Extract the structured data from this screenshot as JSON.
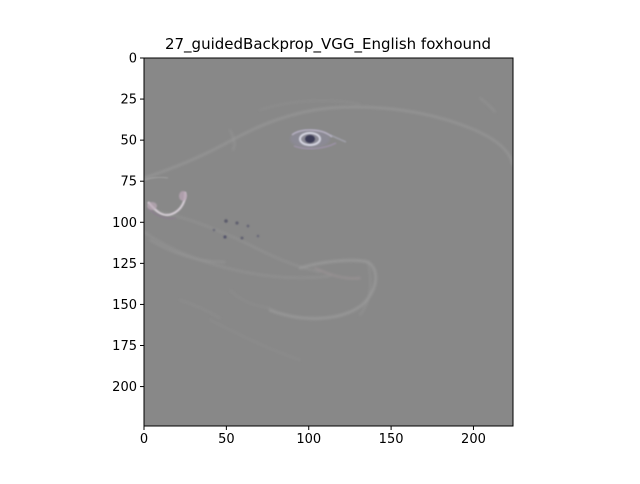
{
  "chart_data": {
    "type": "heatmap",
    "title": "27_guidedBackprop_VGG_English foxhound",
    "xlabel": "",
    "ylabel": "",
    "xlim": [
      0,
      224
    ],
    "ylim": [
      224,
      0
    ],
    "x_ticks": [
      0,
      50,
      100,
      150,
      200
    ],
    "y_ticks": [
      0,
      25,
      50,
      75,
      100,
      125,
      150,
      175,
      200
    ],
    "grid": false,
    "legend": "none",
    "image_background": "#888888",
    "features": [
      {
        "name": "eye",
        "x": 100,
        "y": 49
      },
      {
        "name": "nose",
        "x": 18,
        "y": 90
      },
      {
        "name": "muzzle-dots",
        "x": 55,
        "y": 108
      },
      {
        "name": "ear",
        "x": 175,
        "y": 145
      }
    ]
  }
}
